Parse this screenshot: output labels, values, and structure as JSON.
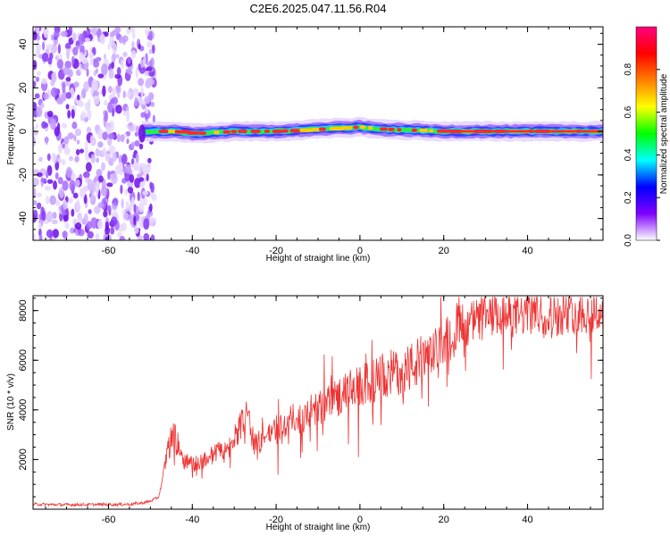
{
  "title": "C2E6.2025.047.11.56.R04",
  "chart_data": [
    {
      "type": "heatmap",
      "title": "C2E6.2025.047.11.56.R04",
      "xlabel": "Height of straight line (km)",
      "ylabel": "Frequency (Hz)",
      "xlim": [
        -78,
        58
      ],
      "ylim": [
        -50,
        48
      ],
      "xticks": [
        -60,
        -40,
        -20,
        0,
        20,
        40
      ],
      "yticks": [
        -40,
        -20,
        0,
        20,
        40
      ],
      "noise_region_x": [
        -78,
        -51
      ],
      "signal_line_frequency": [
        [
          -52,
          0
        ],
        [
          -45,
          0
        ],
        [
          -40,
          -1
        ],
        [
          -30,
          0
        ],
        [
          -20,
          0
        ],
        [
          -10,
          1
        ],
        [
          0,
          2
        ],
        [
          5,
          1
        ],
        [
          20,
          0
        ],
        [
          40,
          0
        ],
        [
          58,
          0
        ]
      ],
      "colorbar": {
        "label": "Normalized spectral amplitude",
        "range": [
          0,
          1
        ],
        "ticks": [
          "0.0",
          "0.2",
          "0.4",
          "0.6",
          "0.8"
        ],
        "colors": [
          "#ffffff",
          "#7f00ff",
          "#0000ff",
          "#00ffff",
          "#00ff00",
          "#ffff00",
          "#ff7f00",
          "#ff0000",
          "#ff007f"
        ]
      }
    },
    {
      "type": "line",
      "xlabel": "Height of straight line (km)",
      "ylabel": "SNR (10 * v/v)",
      "xlim": [
        -78,
        58
      ],
      "ylim": [
        0,
        8600
      ],
      "xticks": [
        -60,
        -40,
        -20,
        0,
        20,
        40
      ],
      "yticks": [
        2000,
        4000,
        6000,
        8000
      ],
      "color": "#ee3333",
      "series": [
        {
          "x": [
            -78,
            -70,
            -60,
            -55,
            -52,
            -50,
            -48,
            -47,
            -46,
            -45,
            -44,
            -43,
            -42,
            -40,
            -38,
            -36,
            -34,
            -32,
            -30,
            -29,
            -28,
            -27,
            -26,
            -25,
            -24,
            -22,
            -20,
            -18,
            -16,
            -14,
            -12,
            -10,
            -8,
            -6,
            -4,
            -2,
            0,
            2,
            4,
            6,
            8,
            10,
            12,
            14,
            16,
            18,
            20,
            22,
            24,
            26,
            28,
            30,
            32,
            34,
            36,
            38,
            40,
            42,
            44,
            46,
            48,
            50,
            52,
            54,
            56,
            58
          ],
          "values": [
            200,
            180,
            190,
            200,
            250,
            320,
            500,
            1300,
            2300,
            3000,
            2900,
            2400,
            2000,
            1800,
            1900,
            2100,
            2300,
            2400,
            2600,
            3200,
            3500,
            3800,
            3000,
            2600,
            2700,
            3000,
            3300,
            3400,
            3600,
            3700,
            3900,
            4000,
            4300,
            4500,
            4600,
            4800,
            4900,
            5100,
            5200,
            5400,
            5500,
            5600,
            5700,
            5900,
            6100,
            6400,
            6800,
            7200,
            7400,
            7500,
            7600,
            7700,
            7700,
            7800,
            7800,
            7800,
            7900,
            7900,
            7900,
            7800,
            7900,
            7900,
            8000,
            7900,
            7900,
            8000
          ]
        }
      ]
    }
  ]
}
